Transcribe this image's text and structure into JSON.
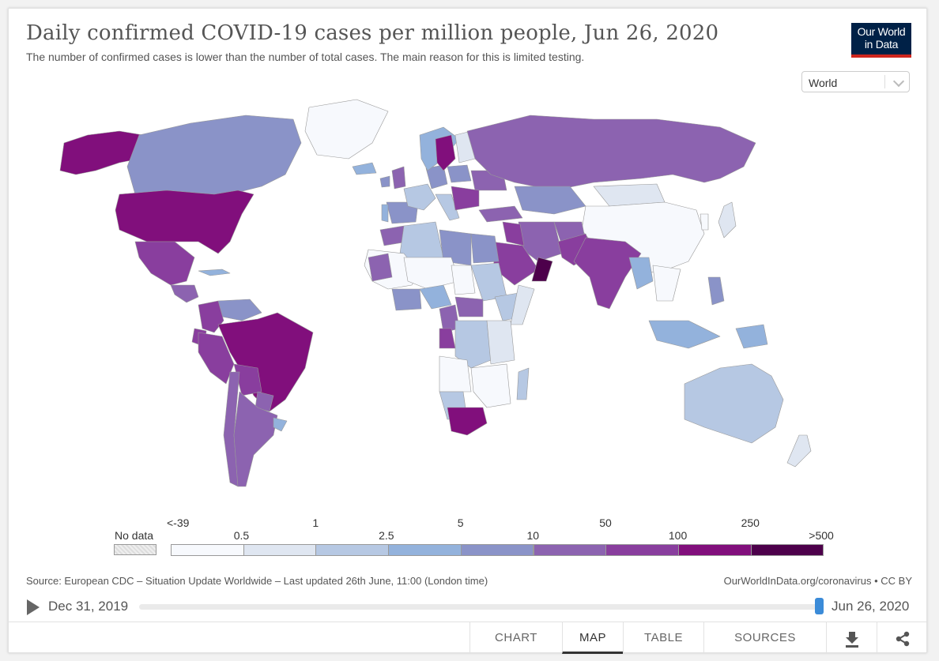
{
  "header": {
    "title": "Daily confirmed COVID-19 cases per million people, Jun 26, 2020",
    "subtitle": "The number of confirmed cases is lower than the number of total cases. The main reason for this is limited testing.",
    "logo_line1": "Our World",
    "logo_line2": "in Data"
  },
  "region_select": {
    "value": "World"
  },
  "colors": {
    "c0": "#f7f9fd",
    "c1": "#dfe6f1",
    "c2": "#b6c8e3",
    "c3": "#93b2dc",
    "c4": "#8a93c8",
    "c5": "#8c63b0",
    "c6": "#893e9e",
    "c7": "#810f7c",
    "c8": "#4d004b",
    "nodata": "#e6e6e6",
    "ocean": "#ffffff",
    "border": "#999999"
  },
  "legend": {
    "nodata_label": "No data",
    "bins": [
      {
        "label": "<-39",
        "color": "#f7f9fd"
      },
      {
        "label": "0.5",
        "color": "#dfe6f1"
      },
      {
        "label": "1",
        "color": "#b6c8e3"
      },
      {
        "label": "2.5",
        "color": "#93b2dc"
      },
      {
        "label": "5",
        "color": "#8a93c8"
      },
      {
        "label": "10",
        "color": "#8c63b0"
      },
      {
        "label": "50",
        "color": "#893e9e"
      },
      {
        "label": "100",
        "color": "#810f7c"
      },
      {
        "label": "250",
        "color": "#4d004b"
      }
    ],
    "top_label": ">500"
  },
  "footer": {
    "source": "Source: European CDC – Situation Update Worldwide – Last updated 26th June, 11:00 (London time)",
    "license": "OurWorldInData.org/coronavirus • CC BY"
  },
  "timeline": {
    "start": "Dec 31, 2019",
    "end": "Jun 26, 2020"
  },
  "tabs": {
    "chart": "CHART",
    "map": "MAP",
    "table": "TABLE",
    "sources": "SOURCES"
  },
  "icons": {
    "play": "play-icon",
    "download": "download-icon",
    "share": "share-icon",
    "chevron": "chevron-down-icon"
  }
}
